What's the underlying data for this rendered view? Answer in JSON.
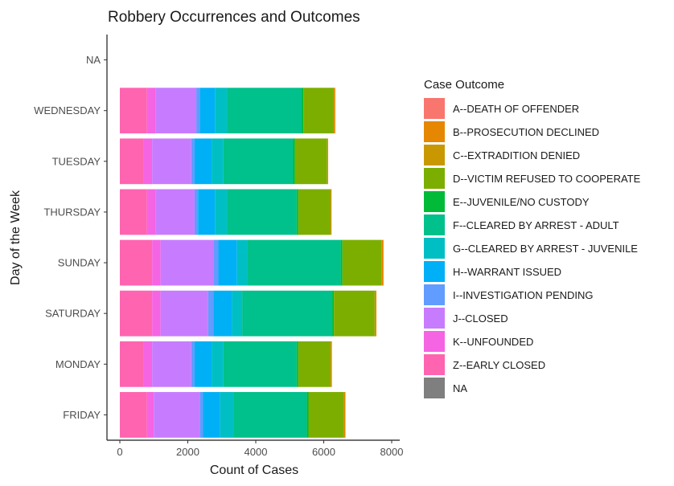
{
  "chart_data": {
    "type": "bar",
    "orientation": "horizontal",
    "stacked": true,
    "title": "Robbery Occurrences and Outcomes",
    "xlabel": "Count of Cases",
    "ylabel": "Day of the Week",
    "xlim": [
      0,
      8000
    ],
    "xticks": [
      0,
      2000,
      4000,
      6000,
      8000
    ],
    "grid": false,
    "legend_position": "right",
    "legend_title": "Case Outcome",
    "categories": [
      "FRIDAY",
      "MONDAY",
      "SATURDAY",
      "SUNDAY",
      "THURSDAY",
      "TUESDAY",
      "WEDNESDAY",
      "NA"
    ],
    "series": [
      {
        "name": "A--DEATH OF OFFENDER",
        "color": "#F8766D",
        "values": [
          0,
          0,
          0,
          0,
          0,
          0,
          0,
          0
        ]
      },
      {
        "name": "B--PROSECUTION DECLINED",
        "color": "#E58700",
        "values": [
          40,
          40,
          50,
          60,
          30,
          30,
          40,
          0
        ]
      },
      {
        "name": "C--EXTRADITION DENIED",
        "color": "#C99800",
        "values": [
          0,
          0,
          0,
          0,
          0,
          0,
          0,
          0
        ]
      },
      {
        "name": "D--VICTIM REFUSED TO COOPERATE",
        "color": "#7CAE00",
        "values": [
          1050,
          950,
          1200,
          1150,
          950,
          950,
          900,
          0
        ]
      },
      {
        "name": "E--JUVENILE/NO CUSTODY",
        "color": "#00BA38",
        "values": [
          50,
          50,
          50,
          50,
          50,
          50,
          50,
          0
        ]
      },
      {
        "name": "F--CLEARED BY ARREST - ADULT",
        "color": "#00C08B",
        "values": [
          2150,
          2150,
          2650,
          2750,
          2050,
          2050,
          2200,
          0
        ]
      },
      {
        "name": "G--CLEARED BY ARREST - JUVENILE",
        "color": "#00BFC4",
        "values": [
          400,
          350,
          300,
          300,
          350,
          350,
          350,
          0
        ]
      },
      {
        "name": "H--WARRANT ISSUED",
        "color": "#00B0F6",
        "values": [
          500,
          500,
          550,
          550,
          500,
          500,
          450,
          0
        ]
      },
      {
        "name": "I--INVESTIGATION PENDING",
        "color": "#619CFF",
        "values": [
          100,
          100,
          150,
          150,
          100,
          100,
          100,
          0
        ]
      },
      {
        "name": "J--CLOSED",
        "color": "#C77CFF",
        "values": [
          1350,
          1150,
          1400,
          1550,
          1150,
          1150,
          1200,
          0
        ]
      },
      {
        "name": "K--UNFOUNDED",
        "color": "#F564E3",
        "values": [
          200,
          250,
          250,
          250,
          250,
          250,
          250,
          0
        ]
      },
      {
        "name": "Z--EARLY CLOSED",
        "color": "#FF64B0",
        "values": [
          800,
          700,
          950,
          950,
          800,
          700,
          800,
          0
        ]
      },
      {
        "name": "NA",
        "color": "#7F7F7F",
        "values": [
          0,
          0,
          0,
          0,
          0,
          0,
          0,
          0
        ]
      }
    ]
  }
}
